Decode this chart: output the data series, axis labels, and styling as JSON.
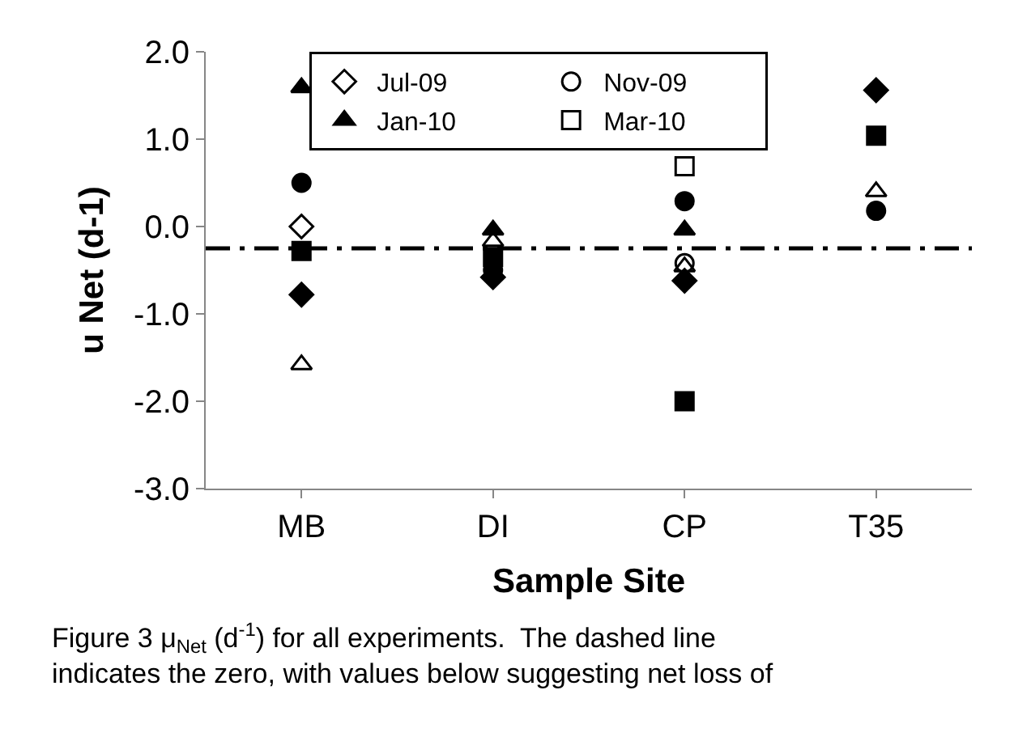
{
  "chart_data": {
    "type": "scatter",
    "xlabel": "Sample Site",
    "ylabel": "u Net (d-1)",
    "categories": [
      "MB",
      "DI",
      "CP",
      "T35"
    ],
    "ylim": [
      -3,
      2
    ],
    "yticks": [
      {
        "value": 2,
        "label": "2.0"
      },
      {
        "value": 1,
        "label": "1.0"
      },
      {
        "value": 0,
        "label": "0.0"
      },
      {
        "value": -1,
        "label": "-1.0"
      },
      {
        "value": -2,
        "label": "-2.0"
      },
      {
        "value": -3,
        "label": "-3.0"
      }
    ],
    "legend": "top",
    "ref_lines": [
      {
        "axis": "y",
        "value": -0.25,
        "color": "#000000",
        "line_style": "dashdot"
      }
    ],
    "series": [
      {
        "name": "Jul-09",
        "marker": "diamond",
        "color": "#000000",
        "values": [
          0.0,
          null,
          null,
          null
        ]
      },
      {
        "name": "Nov-09",
        "marker": "circle",
        "color": "#000000",
        "values": [
          null,
          null,
          -0.42,
          null
        ]
      },
      {
        "name": "Jan-10",
        "marker": "triangle",
        "color": "#000000",
        "values": [
          1.59,
          -0.04,
          -0.04,
          null
        ]
      },
      {
        "name": "Mar-10",
        "marker": "square",
        "color": "#000000",
        "values": [
          null,
          null,
          0.69,
          null
        ]
      },
      {
        "marker": "diamond",
        "color": "#000000",
        "values": [
          -0.78,
          -0.58,
          -0.62,
          1.56
        ]
      },
      {
        "marker": "circle",
        "color": "#000000",
        "values": [
          0.5,
          -0.5,
          0.29,
          0.18
        ]
      },
      {
        "marker": "triangle",
        "color": "#000000",
        "values": [
          -1.58,
          -0.17,
          -0.46,
          0.4
        ]
      },
      {
        "marker": "square",
        "color": "#000000",
        "values": [
          -0.28,
          -0.35,
          -2.0,
          1.04
        ]
      }
    ],
    "annotations": [
      "Figure 3 μ$_{Net}$ (d$^{-1}$) for all experiments.  The dashed line indicates the zero, with values below suggesting net loss of"
    ]
  }
}
